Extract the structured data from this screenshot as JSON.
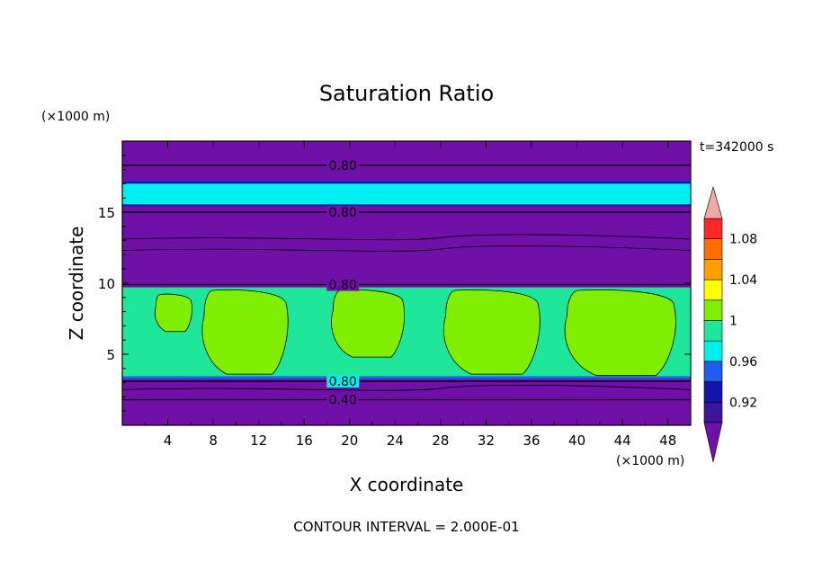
{
  "chart_data": {
    "type": "heatmap",
    "title": "Saturation Ratio",
    "xlabel": "X coordinate",
    "ylabel": "Z coordinate",
    "x_unit_label": "(×1000 m)",
    "z_unit_label": "(×1000 m)",
    "time_label": "t=342000 s",
    "footer": "CONTOUR INTERVAL = 2.000E-01",
    "xlim": [
      0,
      50
    ],
    "ylim": [
      0,
      20
    ],
    "x_ticks": [
      4,
      8,
      12,
      16,
      20,
      24,
      28,
      32,
      36,
      40,
      44,
      48
    ],
    "x_tick_labels": [
      "4",
      "8",
      "12",
      "16",
      "20",
      "24",
      "28",
      "32",
      "36",
      "40",
      "44",
      "48"
    ],
    "y_ticks": [
      5,
      10,
      15
    ],
    "y_tick_labels": [
      "5",
      "10",
      "15"
    ],
    "contour_labels": [
      {
        "text": "0.80",
        "x": 17.5,
        "z": 18.3
      },
      {
        "text": "0.80",
        "x": 17.5,
        "z": 15.0
      },
      {
        "text": "0.80",
        "x": 17.5,
        "z": 9.9
      },
      {
        "text": "0.80",
        "x": 17.5,
        "z": 3.1
      },
      {
        "text": "0.40",
        "x": 17.5,
        "z": 1.8
      }
    ],
    "colorbar": {
      "levels": [
        0.9,
        0.92,
        0.94,
        0.96,
        0.98,
        1.0,
        1.02,
        1.04,
        1.06,
        1.08,
        1.1
      ],
      "labels": [
        "0.92",
        "0.96",
        "1",
        "1.04",
        "1.08"
      ],
      "label_values": [
        0.92,
        0.96,
        1.0,
        1.04,
        1.08
      ],
      "colors": [
        "#3d139f",
        "#1414a8",
        "#1d5ef0",
        "#00f0ee",
        "#1ee69a",
        "#80ee00",
        "#ffff00",
        "#ffa000",
        "#ff7000",
        "#ff2828"
      ],
      "under_color": "#7010a8",
      "over_color": "#f0a8a8"
    },
    "regions": {
      "lower_dry_band": {
        "z": [
          0,
          3.3
        ],
        "value": 0.7
      },
      "moist_layer": {
        "z": [
          3.3,
          9.7
        ],
        "value": 0.99
      },
      "supersaturated_patches": [
        {
          "x": [
            2.8,
            6.2
          ],
          "z": [
            6.6,
            9.2
          ],
          "value": 1.01
        },
        {
          "x": [
            6.8,
            14.8
          ],
          "z": [
            3.6,
            9.5
          ],
          "value": 1.01
        },
        {
          "x": [
            18.2,
            25.0
          ],
          "z": [
            4.8,
            9.5
          ],
          "value": 1.01
        },
        {
          "x": [
            28.0,
            37.0
          ],
          "z": [
            3.6,
            9.5
          ],
          "value": 1.01
        },
        {
          "x": [
            38.6,
            49.0
          ],
          "z": [
            3.5,
            9.5
          ],
          "value": 1.01
        }
      ],
      "middle_dry_band": {
        "z": [
          9.7,
          15.5
        ],
        "value": 0.75
      },
      "upper_moist_band": {
        "z": [
          15.5,
          17.2
        ],
        "value": 0.97
      },
      "top_dry_band": {
        "z": [
          17.2,
          20
        ],
        "value": 0.8
      }
    },
    "grid": false,
    "legend": "colorbar-right"
  }
}
